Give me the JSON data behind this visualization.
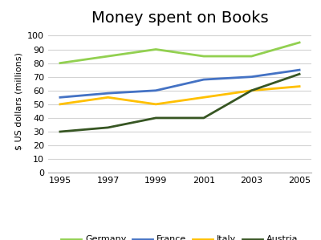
{
  "title": "Money spent on Books",
  "ylabel": "$ US dollars (millions)",
  "years": [
    1995,
    1997,
    1999,
    2001,
    2003,
    2005
  ],
  "series": [
    {
      "name": "Germany",
      "values": [
        80,
        85,
        90,
        85,
        85,
        95
      ],
      "color": "#92d050"
    },
    {
      "name": "France",
      "values": [
        55,
        58,
        60,
        68,
        70,
        75
      ],
      "color": "#4472c4"
    },
    {
      "name": "Italy",
      "values": [
        50,
        55,
        50,
        55,
        60,
        63
      ],
      "color": "#ffc000"
    },
    {
      "name": "Austria",
      "values": [
        30,
        33,
        40,
        40,
        60,
        72
      ],
      "color": "#375623"
    }
  ],
  "ylim": [
    0,
    105
  ],
  "yticks": [
    0,
    10,
    20,
    30,
    40,
    50,
    60,
    70,
    80,
    90,
    100
  ],
  "background_color": "#ffffff",
  "grid_color": "#d3d3d3",
  "title_fontsize": 14,
  "label_fontsize": 8,
  "tick_fontsize": 8,
  "legend_fontsize": 8,
  "linewidth": 2.0
}
